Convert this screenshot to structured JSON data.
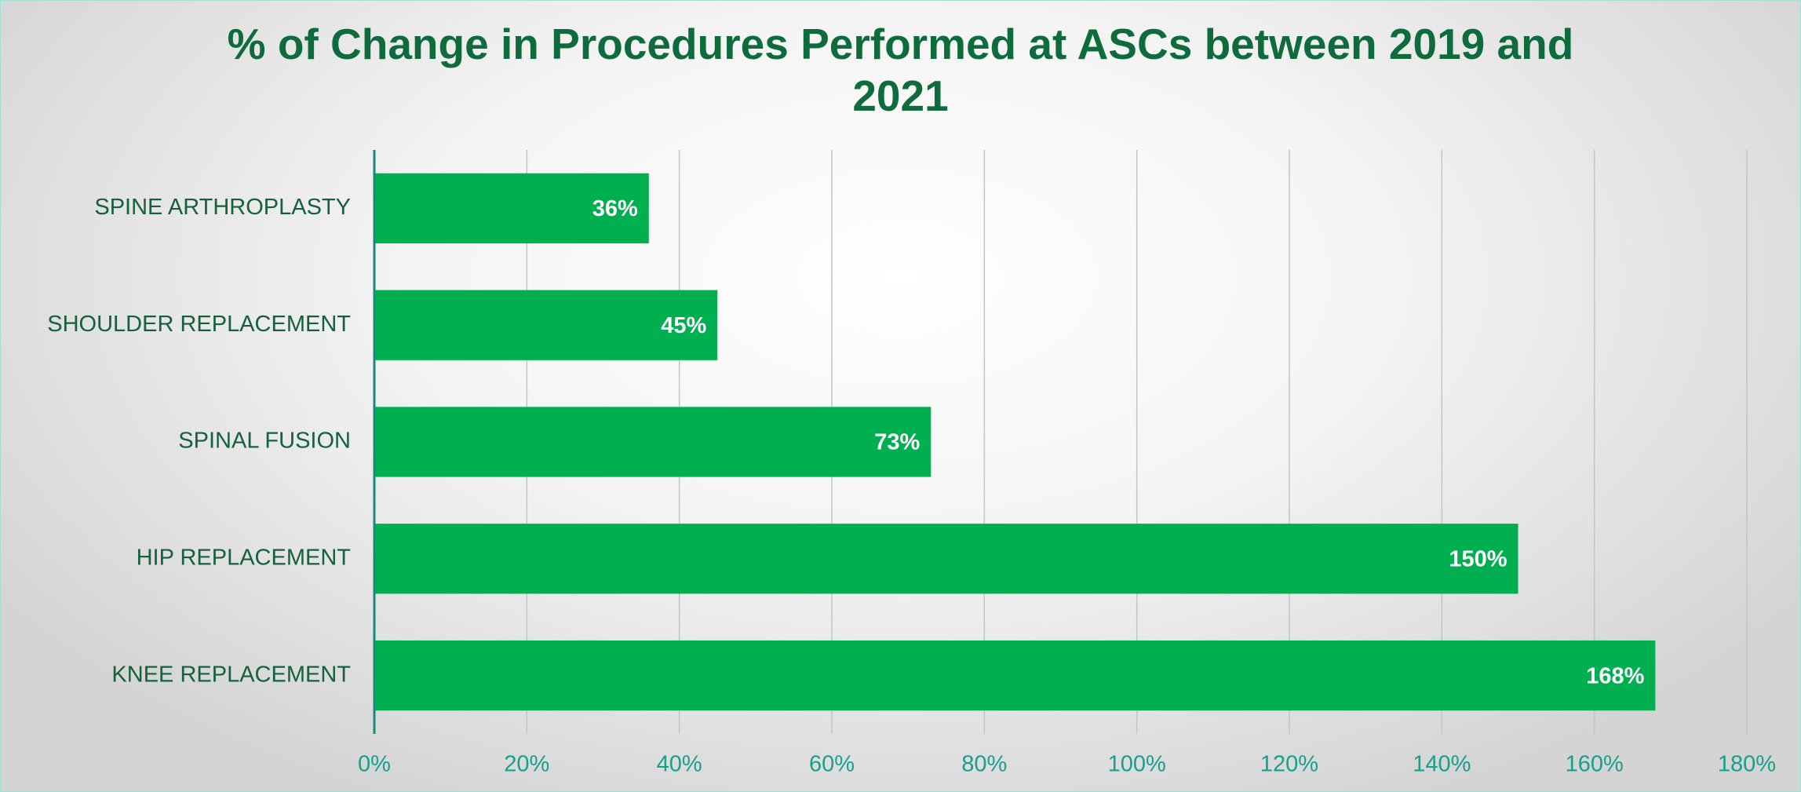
{
  "chart_data": {
    "type": "bar",
    "orientation": "horizontal",
    "title": "% of Change in Procedures Performed at ASCs between 2019 and 2021",
    "categories": [
      "SPINE ARTHROPLASTY",
      "SHOULDER REPLACEMENT",
      "SPINAL FUSION",
      "HIP REPLACEMENT",
      "KNEE REPLACEMENT"
    ],
    "values": [
      36,
      45,
      73,
      150,
      168
    ],
    "value_labels": [
      "36%",
      "45%",
      "73%",
      "150%",
      "168%"
    ],
    "color": "#00b050",
    "xlim": [
      0,
      180
    ],
    "xticks": [
      {
        "value": 0,
        "label": "0%"
      },
      {
        "value": 20,
        "label": "20%"
      },
      {
        "value": 40,
        "label": "40%"
      },
      {
        "value": 60,
        "label": "60%"
      },
      {
        "value": 80,
        "label": "80%"
      },
      {
        "value": 100,
        "label": "100%"
      },
      {
        "value": 120,
        "label": "120%"
      },
      {
        "value": 140,
        "label": "140%"
      },
      {
        "value": 160,
        "label": "160%"
      },
      {
        "value": 180,
        "label": "180%"
      }
    ],
    "grid": true
  }
}
